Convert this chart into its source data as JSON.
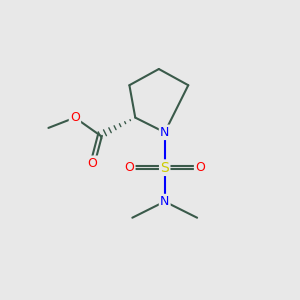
{
  "background_color": "#e8e8e8",
  "bond_color": "#3a5a4a",
  "atom_colors": {
    "O": "#ff0000",
    "N": "#0000ff",
    "S": "#cccc00",
    "C": "#3a5a4a"
  },
  "figsize": [
    3.0,
    3.0
  ],
  "dpi": 100
}
